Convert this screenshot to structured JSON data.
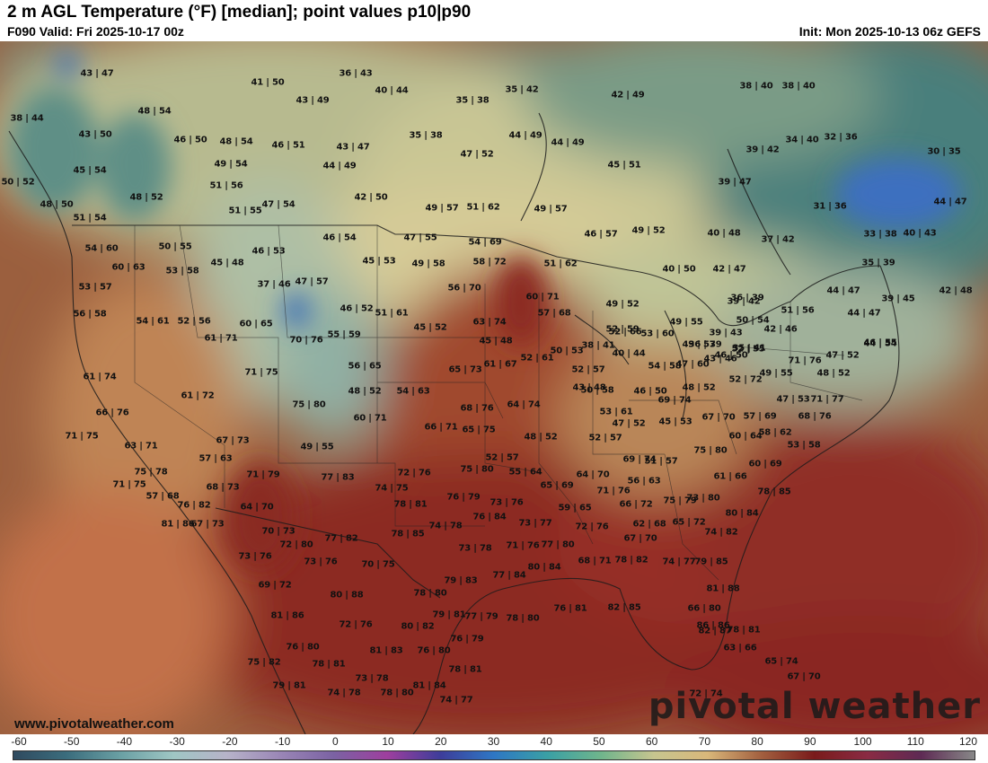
{
  "header": {
    "title": "2 m AGL Temperature (°F) [median]; point values p10|p90",
    "valid": "F090 Valid: Fri 2025-10-17 00z",
    "init": "Init: Mon 2025-10-13 06z GEFS"
  },
  "watermark": {
    "site": "www.pivotalweather.com",
    "brand": "pivotal weather"
  },
  "legend": {
    "ticks": [
      "-60",
      "-50",
      "-40",
      "-30",
      "-20",
      "-10",
      "0",
      "10",
      "20",
      "30",
      "40",
      "50",
      "60",
      "70",
      "80",
      "90",
      "100",
      "110",
      "120"
    ]
  },
  "points": [
    "43|47",
    "41|50",
    "36|43",
    "40|44",
    "35|42",
    "42|49",
    "38|40",
    "38|40",
    "38|44",
    "48|54",
    "43|49",
    "35|38",
    "43|50",
    "46|50",
    "48|54",
    "46|51",
    "43|47",
    "35|38",
    "44|49",
    "44|49",
    "39|42",
    "34|40",
    "32|36",
    "30|35",
    "45|54",
    "49|54",
    "44|49",
    "47|52",
    "45|51",
    "50|52",
    "51|56",
    "42|50",
    "39|47",
    "48|52",
    "48|50",
    "51|54",
    "51|55",
    "47|54",
    "49|57",
    "51|62",
    "49|57",
    "31|36",
    "44|47",
    "46|57",
    "49|52",
    "40|48",
    "37|42",
    "33|38",
    "40|43",
    "54|60",
    "50|55",
    "46|53",
    "46|54",
    "47|55",
    "54|69",
    "58|72",
    "51|62",
    "40|50",
    "42|47",
    "35|39",
    "60|63",
    "53|58",
    "45|48",
    "45|53",
    "49|58",
    "56|70",
    "39|42",
    "44|47",
    "42|48",
    "53|57",
    "37|46",
    "47|57",
    "60|71",
    "49|52",
    "51|56",
    "36|39",
    "39|45",
    "56|58",
    "54|61",
    "52|56",
    "46|52",
    "51|61",
    "63|74",
    "52|59",
    "57|68",
    "49|55",
    "50|54",
    "42|46",
    "44|47",
    "60|65",
    "45|52",
    "52|66",
    "53|60",
    "49|57",
    "39|43",
    "35|41",
    "44|54",
    "70|76",
    "55|59",
    "45|48",
    "36|39",
    "46|50",
    "52|55",
    "46|55",
    "61|71",
    "56|65",
    "50|53",
    "38|41",
    "43|46",
    "71|76",
    "47|52",
    "61|74",
    "71|75",
    "65|73",
    "61|67",
    "52|61",
    "40|44",
    "54|58",
    "49|55",
    "48|52",
    "47|60",
    "52|72",
    "61|72",
    "48|52",
    "54|63",
    "52|57",
    "46|50",
    "48|52",
    "47|53",
    "71|77",
    "75|80",
    "68|76",
    "64|74",
    "50|58",
    "43|48",
    "69|74",
    "57|69",
    "66|76",
    "60|71",
    "53|61",
    "47|52",
    "45|53",
    "67|70",
    "68|76",
    "71|75",
    "66|71",
    "65|75",
    "48|52",
    "52|57",
    "60|64",
    "58|62",
    "67|73",
    "53|58",
    "63|71",
    "49|55",
    "69|74",
    "75|80",
    "57|63",
    "52|57",
    "51|57",
    "60|69",
    "71|79",
    "77|83",
    "72|76",
    "75|80",
    "55|64",
    "64|70",
    "61|66",
    "75|78",
    "71|75",
    "68|73",
    "65|69",
    "71|76",
    "56|63",
    "74|75",
    "78|85",
    "57|68",
    "76|79",
    "73|80",
    "64|70",
    "78|81",
    "75|79",
    "76|82",
    "73|76",
    "59|65",
    "66|72",
    "80|84",
    "81|86",
    "67|73",
    "76|84",
    "74|78",
    "70|73",
    "73|77",
    "72|76",
    "62|68",
    "65|72",
    "74|82",
    "72|80",
    "78|85",
    "77|82",
    "73|78",
    "71|76",
    "77|80",
    "67|70",
    "73|76",
    "73|76",
    "70|75",
    "68|71",
    "78|82",
    "74|77",
    "79|85",
    "77|84",
    "80|84",
    "79|83",
    "80|88",
    "69|72",
    "78|80",
    "81|88",
    "77|79",
    "79|81",
    "82|85",
    "78|80",
    "76|81",
    "66|80",
    "81|86",
    "72|76",
    "80|82",
    "86|86",
    "76|80",
    "76|79",
    "78|81",
    "82|87",
    "63|66",
    "75|82",
    "78|81",
    "81|83",
    "76|80",
    "78|81",
    "65|74",
    "79|81",
    "73|78",
    "81|84",
    "67|70",
    "74|78",
    "78|80",
    "74|77",
    "72|74"
  ]
}
